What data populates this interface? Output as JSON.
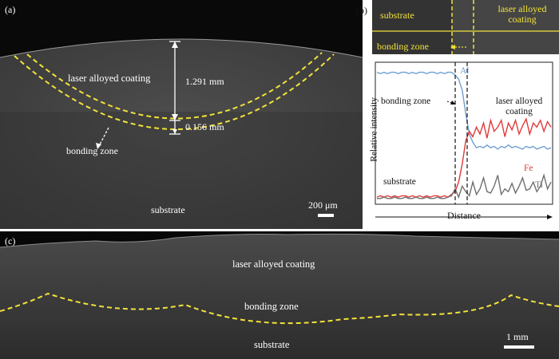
{
  "panel_a": {
    "tag": "(a)",
    "coating_label": "laser alloyed coating",
    "thickness_coating": "1.291 mm",
    "thickness_bonding": "0.156 mm",
    "bonding_label": "bonding zone",
    "substrate_label": "substrate",
    "scalebar": "200 μm"
  },
  "panel_b": {
    "tag": "(b)",
    "micro_substrate": "substrate",
    "micro_coating": "laser alloyed coating",
    "micro_bonding": "bonding zone",
    "chart_bonding": "bonding zone",
    "chart_coating": "laser alloyed coating",
    "chart_substrate": "substrate"
  },
  "panel_c": {
    "tag": "(c)",
    "coating_label": "laser alloyed coating",
    "bonding_label": "bonding zone",
    "substrate_label": "substrate",
    "scalebar": "1 mm"
  },
  "colors": {
    "al": "#6f9fd1",
    "fe": "#e03a3a",
    "ti": "#6f6f6f",
    "guide": "#f2e23a"
  },
  "chart_data": {
    "type": "line",
    "xlabel": "Distance",
    "ylabel": "Relative intensity",
    "series": [
      {
        "name": "Al",
        "values": [
          0.95,
          0.94,
          0.95,
          0.94,
          0.95,
          0.95,
          0.94,
          0.95,
          0.95,
          0.94,
          0.95,
          0.94,
          0.95,
          0.95,
          0.94,
          0.95,
          0.95,
          0.94,
          0.95,
          0.94,
          0.95,
          0.95,
          0.93,
          0.9,
          0.82,
          0.65,
          0.5,
          0.44,
          0.4,
          0.41,
          0.4,
          0.42,
          0.4,
          0.41,
          0.39,
          0.41,
          0.4,
          0.42,
          0.4,
          0.41,
          0.4,
          0.39,
          0.41,
          0.4,
          0.41,
          0.39,
          0.4,
          0.41,
          0.39,
          0.4
        ]
      },
      {
        "name": "Fe",
        "values": [
          0.04,
          0.05,
          0.04,
          0.05,
          0.04,
          0.05,
          0.04,
          0.05,
          0.05,
          0.04,
          0.05,
          0.04,
          0.05,
          0.04,
          0.05,
          0.04,
          0.05,
          0.05,
          0.04,
          0.05,
          0.04,
          0.06,
          0.08,
          0.15,
          0.28,
          0.45,
          0.52,
          0.48,
          0.55,
          0.5,
          0.58,
          0.47,
          0.6,
          0.52,
          0.55,
          0.6,
          0.48,
          0.58,
          0.53,
          0.6,
          0.5,
          0.56,
          0.61,
          0.5,
          0.58,
          0.55,
          0.6,
          0.52,
          0.59,
          0.55
        ]
      },
      {
        "name": "Ti",
        "values": [
          0.03,
          0.03,
          0.04,
          0.03,
          0.03,
          0.04,
          0.03,
          0.03,
          0.04,
          0.03,
          0.03,
          0.04,
          0.03,
          0.03,
          0.04,
          0.03,
          0.03,
          0.04,
          0.03,
          0.03,
          0.04,
          0.05,
          0.1,
          0.04,
          0.12,
          0.08,
          0.05,
          0.15,
          0.06,
          0.1,
          0.18,
          0.08,
          0.07,
          0.12,
          0.2,
          0.06,
          0.1,
          0.08,
          0.14,
          0.07,
          0.12,
          0.18,
          0.09,
          0.1,
          0.15,
          0.08,
          0.12,
          0.2,
          0.1,
          0.15
        ]
      }
    ],
    "grid": false
  }
}
